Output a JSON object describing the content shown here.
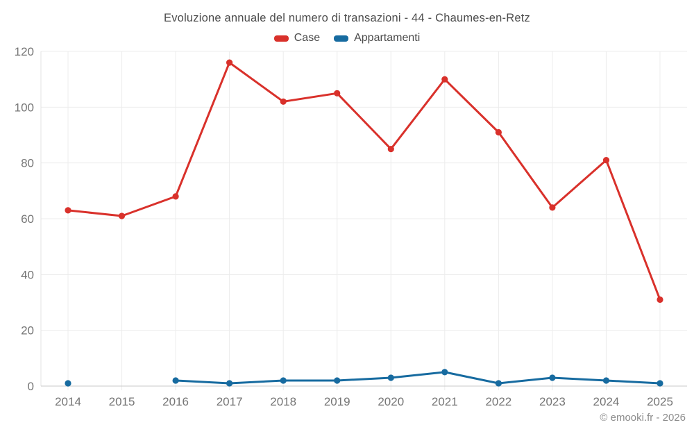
{
  "title": "Evoluzione annuale del numero di transazioni - 44 - Chaumes-en-Retz",
  "legend": [
    {
      "label": "Case"
    },
    {
      "label": "Appartamenti"
    }
  ],
  "footer": {
    "copyright": "© emooki.fr - 2026"
  },
  "chart_data": {
    "type": "line",
    "title": "Evoluzione annuale del numero di transazioni - 44 - Chaumes-en-Retz",
    "x": [
      "2014",
      "2015",
      "2016",
      "2017",
      "2018",
      "2019",
      "2020",
      "2021",
      "2022",
      "2023",
      "2024",
      "2025"
    ],
    "series": [
      {
        "name": "Case",
        "color": "#d9312b",
        "values": [
          63,
          61,
          68,
          116,
          102,
          105,
          85,
          110,
          91,
          64,
          81,
          31
        ]
      },
      {
        "name": "Appartamenti",
        "color": "#176ba0",
        "values": [
          1,
          null,
          2,
          1,
          2,
          2,
          3,
          5,
          1,
          3,
          2,
          1
        ]
      }
    ],
    "xlabel": "",
    "ylabel": "",
    "ylim": [
      0,
      120
    ],
    "yticks": [
      0,
      20,
      40,
      60,
      80,
      100,
      120
    ],
    "grid": true,
    "legend_position": "top",
    "grid_color": "#ececec",
    "axis_line_color": "#c9c9c9",
    "tick_label_color": "#757575"
  }
}
